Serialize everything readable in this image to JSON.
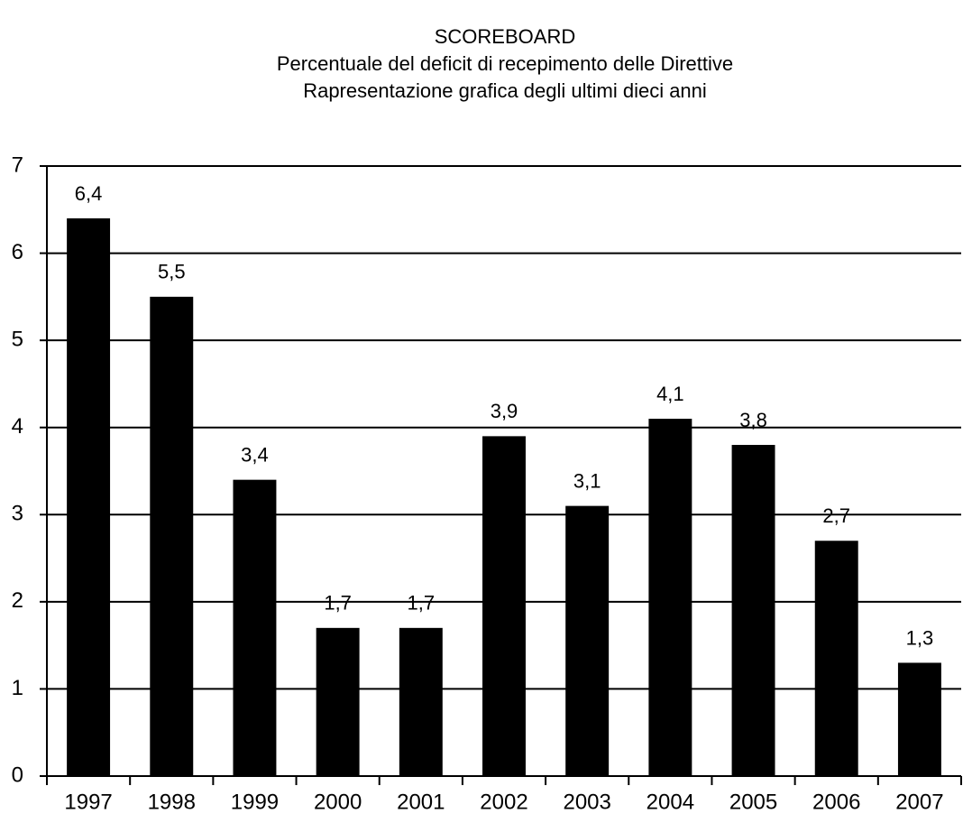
{
  "chart_data": {
    "type": "bar",
    "title": [
      "SCOREBOARD",
      "Percentuale del deficit di recepimento delle Direttive",
      "Rapresentazione grafica degli ultimi dieci anni"
    ],
    "categories": [
      "1997",
      "1998",
      "1999",
      "2000",
      "2001",
      "2002",
      "2003",
      "2004",
      "2005",
      "2006",
      "2007"
    ],
    "values": [
      6.4,
      5.5,
      3.4,
      1.7,
      1.7,
      3.9,
      3.1,
      4.1,
      3.8,
      2.7,
      1.3
    ],
    "value_labels": [
      "6,4",
      "5,5",
      "3,4",
      "1,7",
      "1,7",
      "3,9",
      "3,1",
      "4,1",
      "3,8",
      "2,7",
      "1,3"
    ],
    "color": "#000000",
    "ylim": [
      0,
      7
    ],
    "yticks": [
      0,
      1,
      2,
      3,
      4,
      5,
      6,
      7
    ],
    "grid": true
  }
}
